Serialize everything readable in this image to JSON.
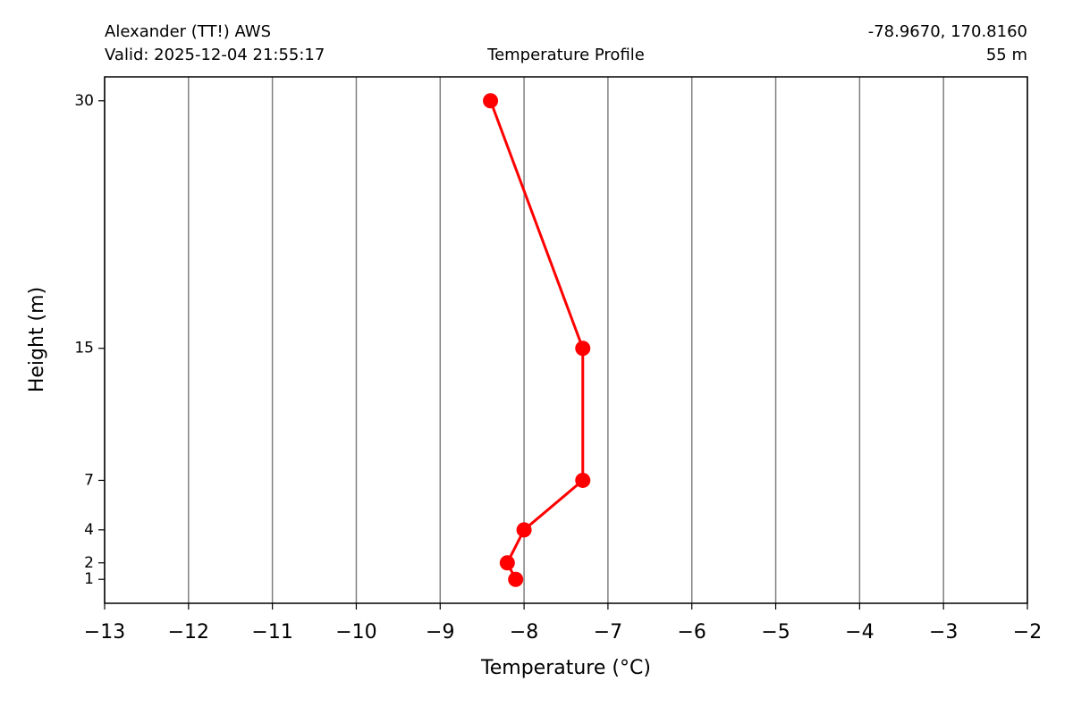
{
  "chart_data": {
    "type": "line",
    "title": "Temperature Profile",
    "station": "Alexander (TT!) AWS",
    "valid": "Valid: 2025-12-04 21:55:17",
    "coordinates": "-78.9670, 170.8160",
    "elevation": "55 m",
    "x_label": "Temperature (°C)",
    "y_label": "Height (m)",
    "x": [
      -8.1,
      -8.2,
      -8.0,
      -7.3,
      -7.3,
      -8.4
    ],
    "y": [
      1,
      2,
      4,
      7,
      15,
      30
    ],
    "color": "#ff0000",
    "xlim": [
      -13,
      -2
    ],
    "ylim": [
      -0.45,
      31.45
    ],
    "xticks": [
      {
        "value": -13,
        "label": "−13"
      },
      {
        "value": -12,
        "label": "−12"
      },
      {
        "value": -11,
        "label": "−11"
      },
      {
        "value": -10,
        "label": "−10"
      },
      {
        "value": -9,
        "label": "−9"
      },
      {
        "value": -8,
        "label": "−8"
      },
      {
        "value": -7,
        "label": "−7"
      },
      {
        "value": -6,
        "label": "−6"
      },
      {
        "value": -5,
        "label": "−5"
      },
      {
        "value": -4,
        "label": "−4"
      },
      {
        "value": -3,
        "label": "−3"
      },
      {
        "value": -2,
        "label": "−2"
      }
    ],
    "yticks": [
      1,
      2,
      4,
      7,
      15,
      30
    ],
    "grid": "x"
  }
}
